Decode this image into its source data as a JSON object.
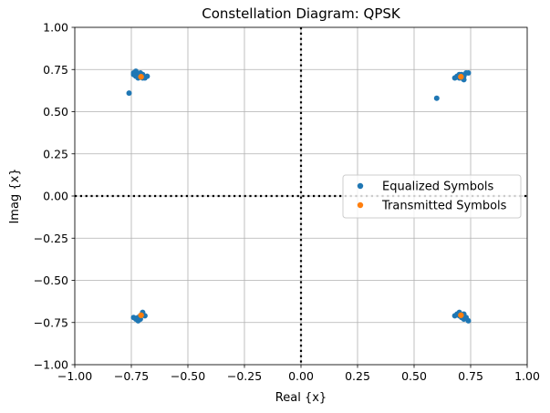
{
  "chart_data": {
    "type": "scatter",
    "title": "Constellation Diagram: QPSK",
    "xlabel": "Real {x}",
    "ylabel": "Imag {x}",
    "xlim": [
      -1.0,
      1.0
    ],
    "ylim": [
      -1.0,
      1.0
    ],
    "xticks": [
      "−1.00",
      "−0.75",
      "−0.50",
      "−0.25",
      "0.00",
      "0.25",
      "0.50",
      "0.75",
      "1.00"
    ],
    "yticks": [
      "−1.00",
      "−0.75",
      "−0.50",
      "−0.25",
      "0.00",
      "0.25",
      "0.50",
      "0.75",
      "1.00"
    ],
    "xtick_values": [
      -1.0,
      -0.75,
      -0.5,
      -0.25,
      0.0,
      0.25,
      0.5,
      0.75,
      1.0
    ],
    "ytick_values": [
      -1.0,
      -0.75,
      -0.5,
      -0.25,
      0.0,
      0.25,
      0.5,
      0.75,
      1.0
    ],
    "grid": true,
    "zero_lines": "dotted",
    "legend_position": "center-right",
    "series": [
      {
        "name": "Equalized Symbols",
        "color": "#1f77b4",
        "points": [
          [
            -0.74,
            0.73
          ],
          [
            -0.73,
            0.74
          ],
          [
            -0.72,
            0.72
          ],
          [
            -0.71,
            0.71
          ],
          [
            -0.7,
            0.7
          ],
          [
            -0.69,
            0.7
          ],
          [
            -0.7,
            0.72
          ],
          [
            -0.72,
            0.7
          ],
          [
            -0.73,
            0.71
          ],
          [
            -0.68,
            0.71
          ],
          [
            -0.71,
            0.73
          ],
          [
            -0.74,
            0.72
          ],
          [
            -0.76,
            0.61
          ],
          [
            0.7,
            0.7
          ],
          [
            0.71,
            0.72
          ],
          [
            0.72,
            0.71
          ],
          [
            0.73,
            0.73
          ],
          [
            0.69,
            0.71
          ],
          [
            0.7,
            0.72
          ],
          [
            0.72,
            0.69
          ],
          [
            0.71,
            0.7
          ],
          [
            0.74,
            0.73
          ],
          [
            0.68,
            0.7
          ],
          [
            0.6,
            0.58
          ],
          [
            -0.73,
            -0.73
          ],
          [
            -0.72,
            -0.74
          ],
          [
            -0.71,
            -0.71
          ],
          [
            -0.7,
            -0.7
          ],
          [
            -0.69,
            -0.71
          ],
          [
            -0.7,
            -0.69
          ],
          [
            -0.72,
            -0.72
          ],
          [
            -0.74,
            -0.72
          ],
          [
            -0.71,
            -0.73
          ],
          [
            0.69,
            -0.7
          ],
          [
            0.7,
            -0.71
          ],
          [
            0.71,
            -0.72
          ],
          [
            0.72,
            -0.73
          ],
          [
            0.73,
            -0.72
          ],
          [
            0.7,
            -0.69
          ],
          [
            0.72,
            -0.7
          ],
          [
            0.74,
            -0.74
          ],
          [
            0.68,
            -0.71
          ]
        ]
      },
      {
        "name": "Transmitted Symbols",
        "color": "#ff7f0e",
        "points": [
          [
            -0.707,
            0.707
          ],
          [
            0.707,
            0.707
          ],
          [
            -0.707,
            -0.707
          ],
          [
            0.707,
            -0.707
          ]
        ]
      }
    ]
  }
}
